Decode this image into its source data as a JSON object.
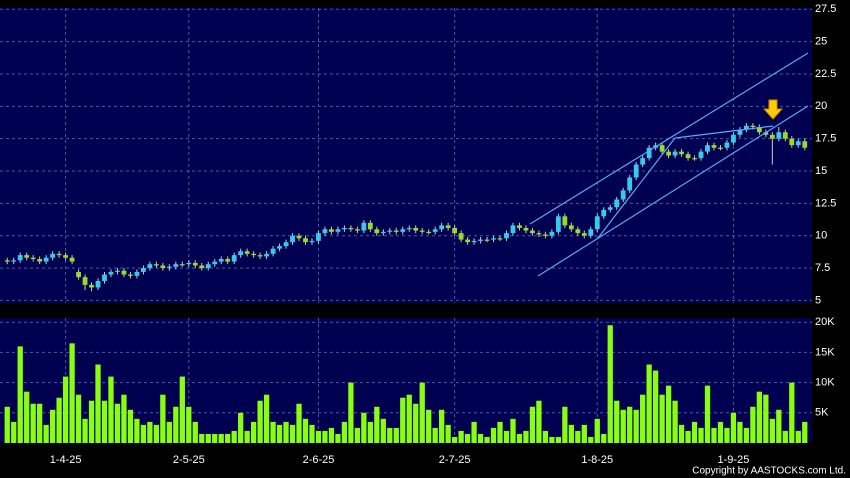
{
  "chart_data": [
    {
      "type": "candlestick",
      "up_color": "#33ccee",
      "down_color": "#99dd22",
      "ylim": [
        4.8,
        27.6
      ],
      "yticks": [
        5,
        7.5,
        10,
        12.5,
        15,
        17.5,
        20,
        22.5,
        25,
        27.5
      ],
      "grid": true,
      "open": [
        8.1,
        8.0,
        8.1,
        8.5,
        8.3,
        8.2,
        8.0,
        8.3,
        8.6,
        8.5,
        8.3,
        7.2,
        6.8,
        6.2,
        6.0,
        6.5,
        7.0,
        7.2,
        7.3,
        7.0,
        6.9,
        7.2,
        7.5,
        7.8,
        7.7,
        7.5,
        7.6,
        7.8,
        7.8,
        7.9,
        7.7,
        7.5,
        7.8,
        8.0,
        8.2,
        8.0,
        8.5,
        8.8,
        8.6,
        8.5,
        8.4,
        8.6,
        9.0,
        9.2,
        9.5,
        10.0,
        9.8,
        9.5,
        9.6,
        10.2,
        10.5,
        10.3,
        10.5,
        10.6,
        10.5,
        10.4,
        11.0,
        10.5,
        10.2,
        10.3,
        10.4,
        10.3,
        10.5,
        10.6,
        10.4,
        10.3,
        10.3,
        10.5,
        10.8,
        10.6,
        10.2,
        9.7,
        9.5,
        9.6,
        9.7,
        9.7,
        9.8,
        9.8,
        10.2,
        10.8,
        10.6,
        10.4,
        10.2,
        10.1,
        10.0,
        10.3,
        11.5,
        10.8,
        10.5,
        10.2,
        10.0,
        10.5,
        11.5,
        12.0,
        12.2,
        12.8,
        13.5,
        14.5,
        15.5,
        16.0,
        16.8,
        17.0,
        16.5,
        16.2,
        16.5,
        16.3,
        16.0,
        16.0,
        16.5,
        17.0,
        16.8,
        16.8,
        17.2,
        17.8,
        18.2,
        18.5,
        18.4,
        18.0,
        17.8,
        17.5,
        18.0,
        17.5,
        17.0,
        17.3
      ],
      "high": [
        8.3,
        8.3,
        8.7,
        8.7,
        8.5,
        8.4,
        8.5,
        8.8,
        8.8,
        8.7,
        8.5,
        7.4,
        7.0,
        6.4,
        6.7,
        7.2,
        7.4,
        7.5,
        7.5,
        7.2,
        7.4,
        7.7,
        8.0,
        8.0,
        7.9,
        7.8,
        8.0,
        8.0,
        8.1,
        8.1,
        7.9,
        8.0,
        8.2,
        8.4,
        8.4,
        8.7,
        9.0,
        9.0,
        8.8,
        8.7,
        8.8,
        9.2,
        9.4,
        9.7,
        10.2,
        10.2,
        10.0,
        9.8,
        10.4,
        10.7,
        10.7,
        10.7,
        10.8,
        10.8,
        10.7,
        11.2,
        11.2,
        10.7,
        10.5,
        10.6,
        10.6,
        10.7,
        10.8,
        10.8,
        10.6,
        10.5,
        10.7,
        11.0,
        11.0,
        10.8,
        10.4,
        9.9,
        9.8,
        9.9,
        9.9,
        10.0,
        10.0,
        10.4,
        11.0,
        11.0,
        10.8,
        10.6,
        10.4,
        10.3,
        10.5,
        11.7,
        11.7,
        11.0,
        10.7,
        10.4,
        10.7,
        11.7,
        12.2,
        12.4,
        13.0,
        13.7,
        14.7,
        15.7,
        16.2,
        17.0,
        17.2,
        17.2,
        16.7,
        16.7,
        16.7,
        16.5,
        16.2,
        16.7,
        17.2,
        17.2,
        17.0,
        17.4,
        18.0,
        18.4,
        18.7,
        18.7,
        18.6,
        18.2,
        18.0,
        18.4,
        18.2,
        17.7,
        17.5,
        17.5
      ],
      "low": [
        7.8,
        7.8,
        7.9,
        8.1,
        8.0,
        7.8,
        7.8,
        8.1,
        8.3,
        8.1,
        7.8,
        6.6,
        5.8,
        5.7,
        5.8,
        6.3,
        6.8,
        7.0,
        6.8,
        6.7,
        6.7,
        7.0,
        7.3,
        7.5,
        7.3,
        7.3,
        7.4,
        7.6,
        7.6,
        7.5,
        7.3,
        7.3,
        7.6,
        7.8,
        7.8,
        7.8,
        8.3,
        8.4,
        8.3,
        8.2,
        8.2,
        8.4,
        8.8,
        9.0,
        9.3,
        9.6,
        9.3,
        9.3,
        9.4,
        10.0,
        10.1,
        10.1,
        10.3,
        10.3,
        10.2,
        10.2,
        10.3,
        10.0,
        10.0,
        10.1,
        10.1,
        10.1,
        10.3,
        10.2,
        10.1,
        10.1,
        10.1,
        10.3,
        10.4,
        10.0,
        9.5,
        9.3,
        9.3,
        9.4,
        9.5,
        9.5,
        9.6,
        9.6,
        10.0,
        10.4,
        10.2,
        10.0,
        9.9,
        9.8,
        9.8,
        10.1,
        10.6,
        10.3,
        10.0,
        9.8,
        9.8,
        10.3,
        11.3,
        11.8,
        12.0,
        12.6,
        13.3,
        14.3,
        15.3,
        15.8,
        16.6,
        16.3,
        16.0,
        16.0,
        16.1,
        15.8,
        15.8,
        15.8,
        16.3,
        16.6,
        16.6,
        16.6,
        17.0,
        17.6,
        18.0,
        18.2,
        17.8,
        17.6,
        15.5,
        17.3,
        17.3,
        16.8,
        16.8,
        16.6
      ],
      "close": [
        8.0,
        8.1,
        8.5,
        8.3,
        8.2,
        8.0,
        8.3,
        8.6,
        8.5,
        8.3,
        8.0,
        6.8,
        6.2,
        6.0,
        6.5,
        7.0,
        7.2,
        7.3,
        7.0,
        6.9,
        7.2,
        7.5,
        7.8,
        7.7,
        7.5,
        7.6,
        7.8,
        7.8,
        7.9,
        7.7,
        7.5,
        7.8,
        8.0,
        8.2,
        8.0,
        8.5,
        8.8,
        8.6,
        8.5,
        8.4,
        8.6,
        9.0,
        9.2,
        9.5,
        10.0,
        9.8,
        9.5,
        9.6,
        10.2,
        10.5,
        10.3,
        10.5,
        10.6,
        10.5,
        10.4,
        11.0,
        10.5,
        10.2,
        10.3,
        10.4,
        10.3,
        10.5,
        10.6,
        10.4,
        10.3,
        10.3,
        10.5,
        10.8,
        10.6,
        10.2,
        9.7,
        9.5,
        9.6,
        9.7,
        9.7,
        9.8,
        9.8,
        10.2,
        10.8,
        10.6,
        10.4,
        10.2,
        10.1,
        10.0,
        10.3,
        11.5,
        10.8,
        10.5,
        10.2,
        10.0,
        10.5,
        11.5,
        12.0,
        12.2,
        12.8,
        13.5,
        14.5,
        15.5,
        16.0,
        16.8,
        17.0,
        16.5,
        16.2,
        16.5,
        16.3,
        16.0,
        16.0,
        16.5,
        17.0,
        16.8,
        16.8,
        17.2,
        17.8,
        18.2,
        18.5,
        18.4,
        18.0,
        17.8,
        17.5,
        18.0,
        17.5,
        17.0,
        17.3,
        16.8
      ]
    },
    {
      "type": "bar",
      "color": "#88ff11",
      "grid": true,
      "ylim": [
        0,
        20700
      ],
      "yticks": [
        {
          "value": 5000,
          "label": "5K"
        },
        {
          "value": 10000,
          "label": "10K"
        },
        {
          "value": 15000,
          "label": "15K"
        },
        {
          "value": 20000,
          "label": "20K"
        }
      ],
      "categories": [
        null,
        null,
        null,
        null,
        null,
        null,
        null,
        null,
        null,
        "1-4-25",
        null,
        null,
        null,
        null,
        null,
        null,
        null,
        null,
        null,
        null,
        null,
        null,
        null,
        null,
        null,
        null,
        null,
        null,
        "2-5-25",
        null,
        null,
        null,
        null,
        null,
        null,
        null,
        null,
        null,
        null,
        null,
        null,
        null,
        null,
        null,
        null,
        null,
        null,
        null,
        "2-6-25",
        null,
        null,
        null,
        null,
        null,
        null,
        null,
        null,
        null,
        null,
        null,
        null,
        null,
        null,
        null,
        null,
        null,
        null,
        null,
        null,
        "2-7-25",
        null,
        null,
        null,
        null,
        null,
        null,
        null,
        null,
        null,
        null,
        null,
        null,
        null,
        null,
        null,
        null,
        null,
        null,
        null,
        null,
        null,
        "1-8-25",
        null,
        null,
        null,
        null,
        null,
        null,
        null,
        null,
        null,
        null,
        null,
        null,
        null,
        null,
        null,
        null,
        null,
        null,
        null,
        null,
        "1-9-25",
        null,
        null,
        null,
        null,
        null,
        null,
        null,
        null,
        null,
        null,
        null
      ],
      "values": [
        6000,
        3500,
        16000,
        8500,
        6500,
        6500,
        3000,
        5500,
        7500,
        11000,
        16500,
        8000,
        4000,
        7000,
        13000,
        7000,
        11000,
        6500,
        8000,
        5500,
        4000,
        3000,
        3500,
        3000,
        8000,
        3500,
        6000,
        11000,
        6000,
        3500,
        1500,
        1500,
        1500,
        1500,
        1500,
        2000,
        5000,
        2000,
        3500,
        7000,
        8000,
        3500,
        3000,
        3500,
        3000,
        6500,
        4000,
        3000,
        2000,
        2000,
        2500,
        1500,
        3500,
        10000,
        2500,
        5000,
        3500,
        6000,
        4000,
        2500,
        2500,
        7500,
        8000,
        6500,
        10000,
        5500,
        2500,
        5500,
        3000,
        1000,
        2000,
        1500,
        3500,
        1500,
        1000,
        2500,
        3500,
        2000,
        4000,
        1500,
        2000,
        6000,
        7000,
        2000,
        1000,
        1000,
        6000,
        3000,
        2000,
        3000,
        1000,
        4000,
        1500,
        19500,
        7000,
        5500,
        6000,
        5500,
        8000,
        13000,
        12000,
        8000,
        9500,
        7000,
        3000,
        2000,
        3500,
        2500,
        9500,
        2500,
        3500,
        2500,
        5000,
        3500,
        2500,
        6000,
        8500,
        8000,
        4000,
        5500,
        2000,
        10000,
        2000,
        3500
      ]
    }
  ],
  "footer": "Copyright by AASTOCKS.com Ltd."
}
